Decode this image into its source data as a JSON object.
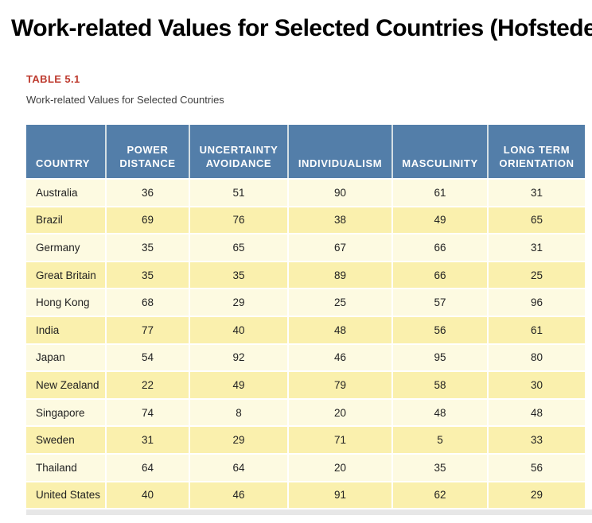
{
  "header": {
    "title": "Work-related Values for Selected Countries (Hofstede)",
    "table_label": "TABLE 5.1",
    "table_caption": "Work-related Values for Selected Countries"
  },
  "colors": {
    "header_bg": "#537EA9",
    "row_light": "#FDFAE1",
    "row_dark": "#FAF0AD",
    "label_red": "#BE3B2F",
    "header_text": "#FFFFFF",
    "body_text": "#222222"
  },
  "chart_data": {
    "type": "table",
    "title": "Work-related Values for Selected Countries",
    "columns": [
      "COUNTRY",
      "POWER DISTANCE",
      "UNCERTAINTY AVOIDANCE",
      "INDIVIDUALISM",
      "MASCULINITY",
      "LONG TERM ORIENTATION"
    ],
    "rows": [
      [
        "Australia",
        36,
        51,
        90,
        61,
        31
      ],
      [
        "Brazil",
        69,
        76,
        38,
        49,
        65
      ],
      [
        "Germany",
        35,
        65,
        67,
        66,
        31
      ],
      [
        "Great Britain",
        35,
        35,
        89,
        66,
        25
      ],
      [
        "Hong Kong",
        68,
        29,
        25,
        57,
        96
      ],
      [
        "India",
        77,
        40,
        48,
        56,
        61
      ],
      [
        "Japan",
        54,
        92,
        46,
        95,
        80
      ],
      [
        "New Zealand",
        22,
        49,
        79,
        58,
        30
      ],
      [
        "Singapore",
        74,
        8,
        20,
        48,
        48
      ],
      [
        "Sweden",
        31,
        29,
        71,
        5,
        33
      ],
      [
        "Thailand",
        64,
        64,
        20,
        35,
        56
      ],
      [
        "United States",
        40,
        46,
        91,
        62,
        29
      ]
    ]
  }
}
